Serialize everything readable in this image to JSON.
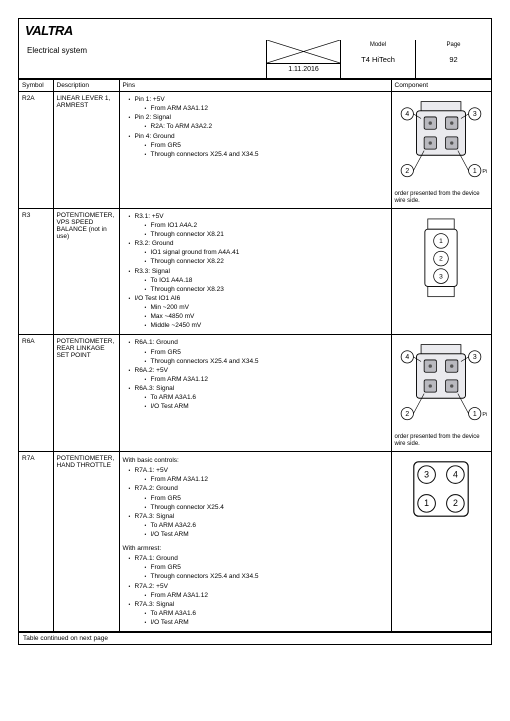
{
  "brand": "VALTRA",
  "doc_title": "Electrical system",
  "date": "1.11.2016",
  "model_label": "Model",
  "model_value": "T4 HiTech",
  "page_label": "Page",
  "page_value": "92",
  "columns": {
    "symbol": "Symbol",
    "description": "Description",
    "pins": "Pins",
    "component": "Component"
  },
  "rows": [
    {
      "symbol": "R2A",
      "description": "LINEAR LEVER 1, ARMREST",
      "pins": [
        {
          "t": "Pin 1: +5V",
          "c": [
            {
              "t": "From ARM A3A1.12"
            }
          ]
        },
        {
          "t": "Pin 2: Signal",
          "c": [
            {
              "t": "R2A: To ARM A3A2.2"
            }
          ]
        },
        {
          "t": "Pin 4: Ground",
          "c": [
            {
              "t": "From GR5"
            },
            {
              "t": "Through connectors X25.4 and X34.5"
            }
          ]
        }
      ],
      "comp_type": "quad",
      "caption": "order presented from the device wire side."
    },
    {
      "symbol": "R3",
      "description": "POTENTIOMETER, VPS SPEED BALANCE (not in use)",
      "pins": [
        {
          "t": "R3.1: +5V",
          "c": [
            {
              "t": "From IO1 A4A.2"
            },
            {
              "t": "Through connector X8.21"
            }
          ]
        },
        {
          "t": "R3.2: Ground",
          "c": [
            {
              "t": "IO1 signal ground from A4A.41"
            },
            {
              "t": "Through connector X8.22"
            }
          ]
        },
        {
          "t": "R3.3: Signal",
          "c": [
            {
              "t": "To IO1 A4A.18"
            },
            {
              "t": "Through connector X8.23"
            }
          ]
        },
        {
          "t": "I/O Test IO1 AI6",
          "c": [
            {
              "t": "Min ~200 mV"
            },
            {
              "t": "Max ~4850 mV"
            },
            {
              "t": "Middle ~2450 mV"
            }
          ]
        }
      ],
      "comp_type": "triple",
      "caption": ""
    },
    {
      "symbol": "R6A",
      "description": "POTENTIOMETER, REAR LINKAGE SET POINT",
      "pins": [
        {
          "t": "R6A.1: Ground",
          "c": [
            {
              "t": "From GR5"
            },
            {
              "t": "Through connectors X25.4 and X34.5"
            }
          ]
        },
        {
          "t": "R6A.2: +5V",
          "c": [
            {
              "t": "From ARM A3A1.12"
            }
          ]
        },
        {
          "t": "R6A.3: Signal",
          "c": [
            {
              "t": "To ARM A3A1.6"
            },
            {
              "t": "I/O Test ARM"
            }
          ]
        }
      ],
      "comp_type": "quad",
      "caption": "order presented from the device wire side."
    },
    {
      "symbol": "R7A",
      "description": "POTENTIOMETER, HAND THROTTLE",
      "pins_pre": "With basic controls:",
      "pins": [
        {
          "t": "R7A.1: +5V",
          "c": [
            {
              "t": "From ARM A3A1.12"
            }
          ]
        },
        {
          "t": "R7A.2: Ground",
          "c": [
            {
              "t": "From GR5"
            },
            {
              "t": "Through connector X25.4"
            }
          ]
        },
        {
          "t": "R7A.3: Signal",
          "c": [
            {
              "t": "To ARM A3A2.6"
            },
            {
              "t": "I/O Test ARM"
            }
          ]
        }
      ],
      "pins_mid": "With armrest:",
      "pins2": [
        {
          "t": "R7A.1: Ground",
          "c": [
            {
              "t": "From GR5"
            },
            {
              "t": "Through connectors X25.4 and X34.5"
            }
          ]
        },
        {
          "t": "R7A.2: +5V",
          "c": [
            {
              "t": "From ARM A3A1.12"
            }
          ]
        },
        {
          "t": "R7A.3: Signal",
          "c": [
            {
              "t": "To ARM A3A1.6"
            },
            {
              "t": "I/O Test ARM"
            }
          ]
        }
      ],
      "comp_type": "square4",
      "caption": ""
    }
  ],
  "footer": "Table continued on next page",
  "colors": {
    "connector_fill": "#b9b9bf",
    "body_fill": "#eaeaee",
    "stroke": "#000000"
  }
}
